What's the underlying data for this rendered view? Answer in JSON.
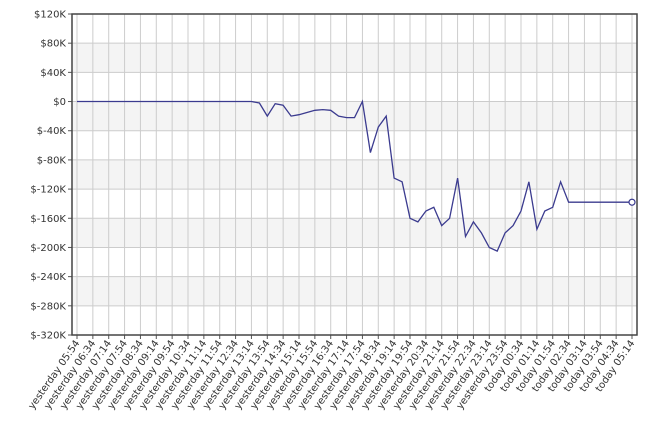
{
  "chart_data": {
    "type": "line",
    "categories": [
      "yesterday 05:54",
      null,
      "yesterday 06:34",
      null,
      "yesterday 07:14",
      null,
      "yesterday 07:54",
      null,
      "yesterday 08:34",
      null,
      "yesterday 09:14",
      null,
      "yesterday 09:54",
      null,
      "yesterday 10:34",
      null,
      "yesterday 11:14",
      null,
      "yesterday 11:54",
      null,
      "yesterday 12:34",
      null,
      "yesterday 13:14",
      null,
      "yesterday 13:54",
      null,
      "yesterday 14:34",
      null,
      "yesterday 15:14",
      null,
      "yesterday 15:54",
      null,
      "yesterday 16:34",
      null,
      "yesterday 17:14",
      null,
      "yesterday 17:54",
      null,
      "yesterday 18:34",
      null,
      "yesterday 19:14",
      null,
      "yesterday 19:54",
      null,
      "yesterday 20:34",
      null,
      "yesterday 21:14",
      null,
      "yesterday 21:54",
      null,
      "yesterday 22:34",
      null,
      "yesterday 23:14",
      null,
      "yesterday 23:54",
      null,
      "today 00:34",
      null,
      "today 01:14",
      null,
      "today 01:54",
      null,
      "today 02:34",
      null,
      "today 03:14",
      null,
      "today 03:54",
      null,
      "today 04:34",
      null,
      "today 05:14"
    ],
    "series": [
      {
        "color": "#3b3b8f",
        "values": [
          0,
          0,
          0,
          0,
          0,
          0,
          0,
          0,
          0,
          0,
          0,
          0,
          0,
          0,
          0,
          0,
          0,
          0,
          0,
          0,
          0,
          0,
          0,
          -2000,
          -20000,
          -3000,
          -5000,
          -20000,
          -18000,
          -15000,
          -12000,
          -11000,
          -12000,
          -20000,
          -22000,
          -22000,
          0,
          -70000,
          -35000,
          -20000,
          -105000,
          -110000,
          -160000,
          -165000,
          -150000,
          -145000,
          -170000,
          -160000,
          -105000,
          -185000,
          -165000,
          -180000,
          -200000,
          -205000,
          -180000,
          -170000,
          -150000,
          -110000,
          -175000,
          -150000,
          -145000,
          -110000,
          -138000,
          -138000,
          -138000,
          -138000,
          -138000,
          -138000,
          -138000,
          -138000,
          -138000
        ]
      }
    ],
    "ylim": [
      -320000,
      120000
    ],
    "yticks": [
      {
        "value": -320000,
        "label": "$-320K"
      },
      {
        "value": -280000,
        "label": "$-280K"
      },
      {
        "value": -240000,
        "label": "$-240K"
      },
      {
        "value": -200000,
        "label": "$-200K"
      },
      {
        "value": -160000,
        "label": "$-160K"
      },
      {
        "value": -120000,
        "label": "$-120K"
      },
      {
        "value": -80000,
        "label": "$-80K"
      },
      {
        "value": -40000,
        "label": "$-40K"
      },
      {
        "value": 0,
        "label": "$0"
      },
      {
        "value": 40000,
        "label": "$40K"
      },
      {
        "value": 80000,
        "label": "$80K"
      },
      {
        "value": 120000,
        "label": "$120K"
      }
    ],
    "grid": true
  }
}
